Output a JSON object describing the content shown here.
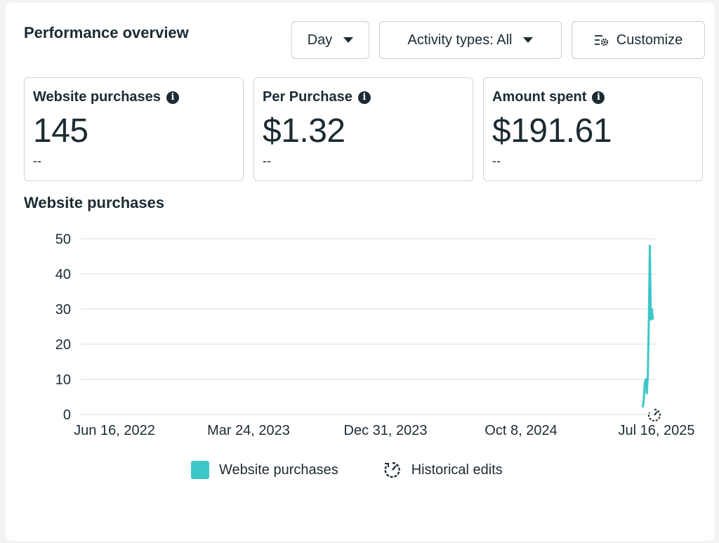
{
  "header": {
    "title": "Performance overview",
    "period_label": "Day",
    "activity_label": "Activity types: All",
    "customize_label": "Customize"
  },
  "metrics": [
    {
      "label": "Website purchases",
      "value": "145",
      "delta": "--"
    },
    {
      "label": "Per Purchase",
      "value": "$1.32",
      "delta": "--"
    },
    {
      "label": "Amount spent",
      "value": "$191.61",
      "delta": "--"
    }
  ],
  "chart_title": "Website purchases",
  "legend": {
    "series_label": "Website purchases",
    "edits_label": "Historical edits"
  },
  "colors": {
    "series": "#3ec7c9",
    "grid": "#dfe3e8",
    "text": "#1c2b33"
  },
  "chart_data": {
    "type": "line",
    "title": "",
    "xlabel": "",
    "ylabel": "",
    "ylim": [
      0,
      50
    ],
    "yticks": [
      0,
      10,
      20,
      30,
      40,
      50
    ],
    "xticks": [
      "Jun 16, 2022",
      "Mar 24, 2023",
      "Dec 31, 2023",
      "Oct 8, 2024",
      "Jul 16, 2025"
    ],
    "series": [
      {
        "name": "Website purchases",
        "x": [
          "2025-06-19",
          "2025-06-21",
          "2025-06-23",
          "2025-06-25",
          "2025-06-27",
          "2025-06-29",
          "2025-07-01",
          "2025-07-03",
          "2025-07-05",
          "2025-07-07",
          "2025-07-09"
        ],
        "y": [
          2,
          4,
          9,
          10,
          6,
          11,
          27,
          48,
          27,
          30,
          27
        ]
      }
    ],
    "grid": true,
    "legend": "bottom-center"
  }
}
